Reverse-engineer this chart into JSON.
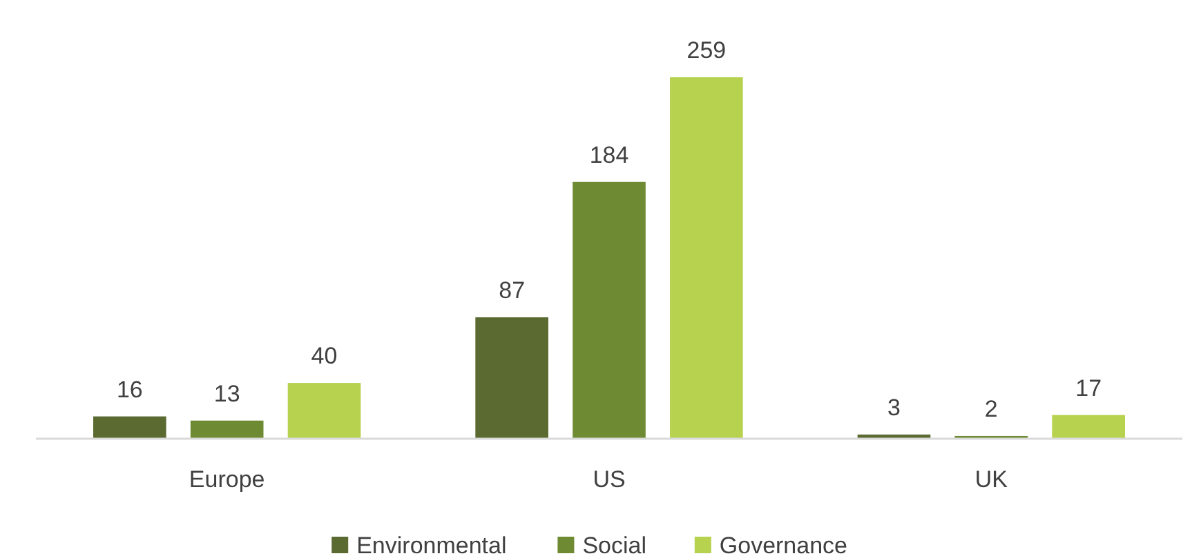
{
  "chart_data": {
    "type": "bar",
    "categories": [
      "Europe",
      "US",
      "UK"
    ],
    "series": [
      {
        "name": "Environmental",
        "color": "#5a6a31",
        "values": [
          16,
          87,
          3
        ]
      },
      {
        "name": "Social",
        "color": "#6e8b34",
        "values": [
          13,
          184,
          2
        ]
      },
      {
        "name": "Governance",
        "color": "#b6d24f",
        "values": [
          40,
          259,
          17
        ]
      }
    ],
    "data_labels": true,
    "legend": "bottom",
    "grid": false
  }
}
